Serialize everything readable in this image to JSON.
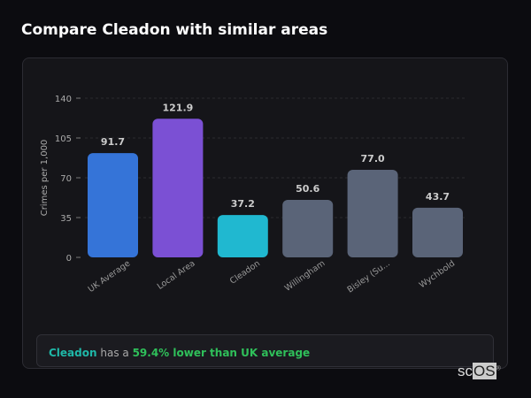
{
  "title": "Compare Cleadon with similar areas",
  "chart_data": {
    "type": "bar",
    "categories": [
      "UK Average",
      "Local Area",
      "Cleadon",
      "Willingham",
      "Bisley (Su...",
      "Wychbold"
    ],
    "values": [
      91.7,
      121.9,
      37.2,
      50.6,
      77.0,
      43.7
    ],
    "value_labels": [
      "91.7",
      "121.9",
      "37.2",
      "50.6",
      "77.0",
      "43.7"
    ],
    "colors": [
      "#3574d8",
      "#7b50d4",
      "#20b8d0",
      "#5a6478",
      "#5a6478",
      "#5a6478"
    ],
    "ylabel": "Crimes per 1,000",
    "ylim": [
      0,
      140
    ],
    "yticks": [
      0,
      35,
      70,
      105,
      140
    ],
    "grid": true
  },
  "summary": {
    "place": "Cleadon",
    "middle": " has a ",
    "comparison": "59.4% lower than UK average"
  },
  "logo": {
    "text1": "sc",
    "text2": "OS",
    "mark": "®"
  }
}
